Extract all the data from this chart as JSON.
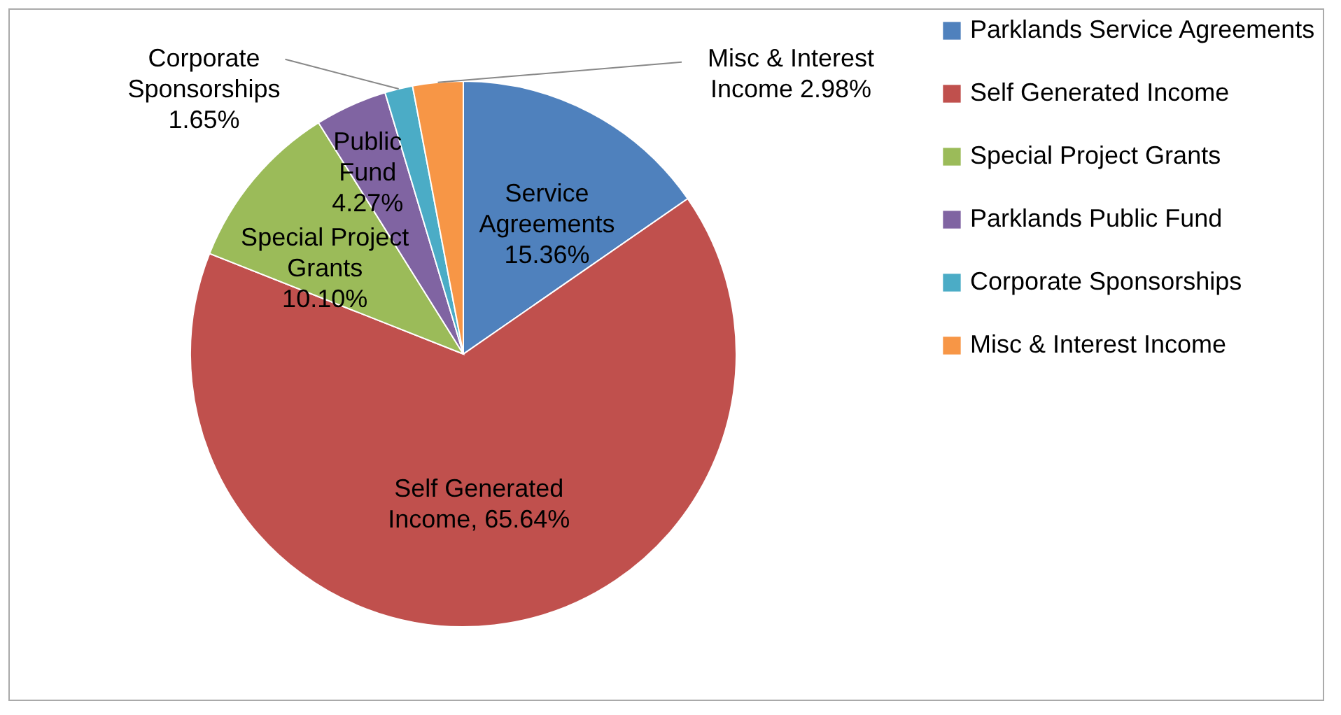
{
  "chart_data": {
    "type": "pie",
    "categories": [
      "Parklands Service Agreements",
      "Self Generated Income",
      "Special Project Grants",
      "Parklands Public Fund",
      "Corporate Sponsorships",
      "Misc & Interest Income"
    ],
    "values": [
      15.36,
      65.64,
      10.1,
      4.27,
      1.65,
      2.98
    ],
    "colors": [
      "#4f81bd",
      "#c0504d",
      "#9bbb59",
      "#8064a2",
      "#4bacc6",
      "#f79646"
    ],
    "value_labels": [
      "Service\nAgreements\n15.36%",
      "Self Generated\nIncome, 65.64%",
      "Special Project\nGrants\n10.10%",
      "Public\nFund\n4.27%",
      "Corporate\nSponsorships\n1.65%",
      "Misc & Interest\nIncome 2.98%"
    ],
    "legend": "right"
  }
}
